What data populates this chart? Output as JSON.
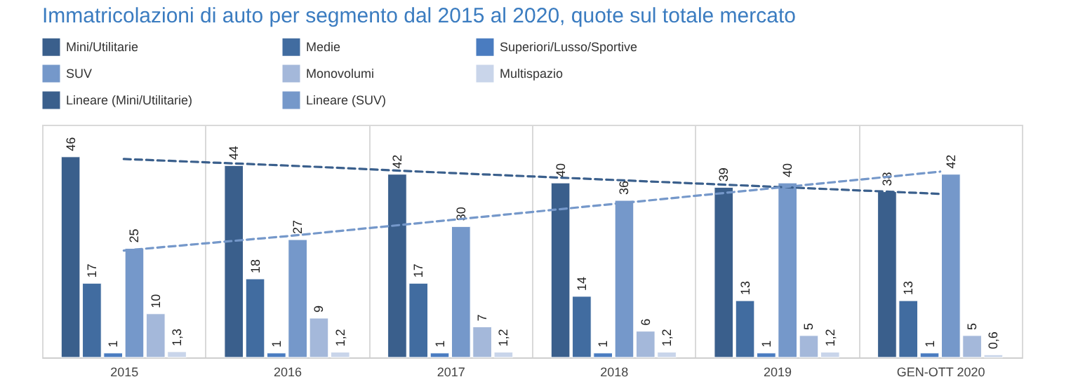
{
  "chart_data": {
    "type": "bar",
    "title": "Immatricolazioni di auto per segmento dal 2015 al 2020, quote sul totale mercato",
    "categories": [
      "2015",
      "2016",
      "2017",
      "2018",
      "2019",
      "GEN-OTT 2020"
    ],
    "series": [
      {
        "name": "Mini/Utilitarie",
        "color": "#3a5f8c",
        "values": [
          46,
          44,
          42,
          40,
          39,
          38
        ],
        "value_labels": [
          "46",
          "44",
          "42",
          "40",
          "39",
          "38"
        ]
      },
      {
        "name": "Medie",
        "color": "#416ca0",
        "values": [
          17,
          18,
          17,
          14,
          13,
          13
        ],
        "value_labels": [
          "17",
          "18",
          "17",
          "14",
          "13",
          "13"
        ]
      },
      {
        "name": "Superiori/Lusso/Sportive",
        "color": "#4a7cc0",
        "values": [
          1,
          1,
          1,
          1,
          1,
          1
        ],
        "value_labels": [
          "1",
          "1",
          "1",
          "1",
          "1",
          "1"
        ]
      },
      {
        "name": "SUV",
        "color": "#7598ca",
        "values": [
          25,
          27,
          30,
          36,
          40,
          42
        ],
        "value_labels": [
          "25",
          "27",
          "30",
          "36",
          "40",
          "42"
        ]
      },
      {
        "name": "Monovolumi",
        "color": "#a4b8da",
        "values": [
          10,
          9,
          7,
          6,
          5,
          5
        ],
        "value_labels": [
          "10",
          "9",
          "7",
          "6",
          "5",
          "5"
        ]
      },
      {
        "name": "Multispazio",
        "color": "#c9d5ea",
        "values": [
          1.3,
          1.2,
          1.2,
          1.2,
          1.2,
          0.6
        ],
        "value_labels": [
          "1,3",
          "1,2",
          "1,2",
          "1,2",
          "1,2",
          "0,6"
        ]
      },
      {
        "name": "Lineare (Mini/Utilitarie)",
        "color": "#3a5f8c",
        "type": "line",
        "line_style": "dashed",
        "values": [
          45.5,
          44,
          42.3,
          40.7,
          39.1,
          37.5
        ]
      },
      {
        "name": "Lineare (SUV)",
        "color": "#7598ca",
        "type": "line",
        "line_style": "dashed",
        "values": [
          24.5,
          27.8,
          31.5,
          35.2,
          38.9,
          42.6
        ]
      }
    ],
    "grid": "x",
    "legend": "top"
  }
}
